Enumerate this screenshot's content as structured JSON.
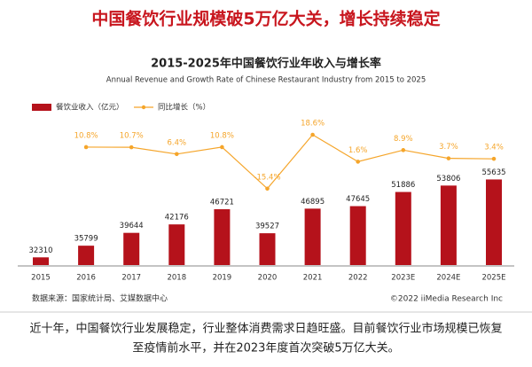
{
  "headline": "中国餐饮行业规模破5万亿大关，增长持续稳定",
  "caption": [
    "近十年，中国餐饮行业发展稳定，行业整体消费需求日趋旺盛。目前餐饮行业市场规模已恢复",
    "至疫情前水平，并在2023年度首次突破5万亿大关。"
  ],
  "chart_data": {
    "type": "bar-line",
    "title": "2015-2025年中国餐饮行业年收入与增长率",
    "subtitle": "Annual Revenue and Growth Rate of Chinese Restaurant Industry from 2015 to 2025",
    "categories": [
      "2015",
      "2016",
      "2017",
      "2018",
      "2019",
      "2020",
      "2021",
      "2022",
      "2023E",
      "2024E",
      "2025E"
    ],
    "series": [
      {
        "name": "餐饮业收入（亿元）",
        "color": "#b5121b",
        "values": [
          32310,
          35799,
          39644,
          42176,
          46721,
          39527,
          46895,
          47645,
          51886,
          53806,
          55635
        ]
      },
      {
        "name": "同比增长（%）",
        "color": "#f5a52a",
        "axis": "y2",
        "values": [
          null,
          10.8,
          10.7,
          6.4,
          10.8,
          -15.4,
          18.6,
          1.6,
          8.9,
          3.7,
          3.4
        ],
        "value_labels": [
          null,
          "10.8%",
          "10.7%",
          "6.4%",
          "10.8%",
          "-15.4%",
          "18.6%",
          "1.6%",
          "8.9%",
          "3.7%",
          "3.4%"
        ]
      }
    ],
    "ylim": [
      30000,
      60000
    ],
    "y2lim": [
      -20,
      20
    ],
    "legend": "top-left",
    "source": "数据来源：国家统计局、艾媒数据中心",
    "credit": "©2022 iiMedia Research Inc"
  }
}
